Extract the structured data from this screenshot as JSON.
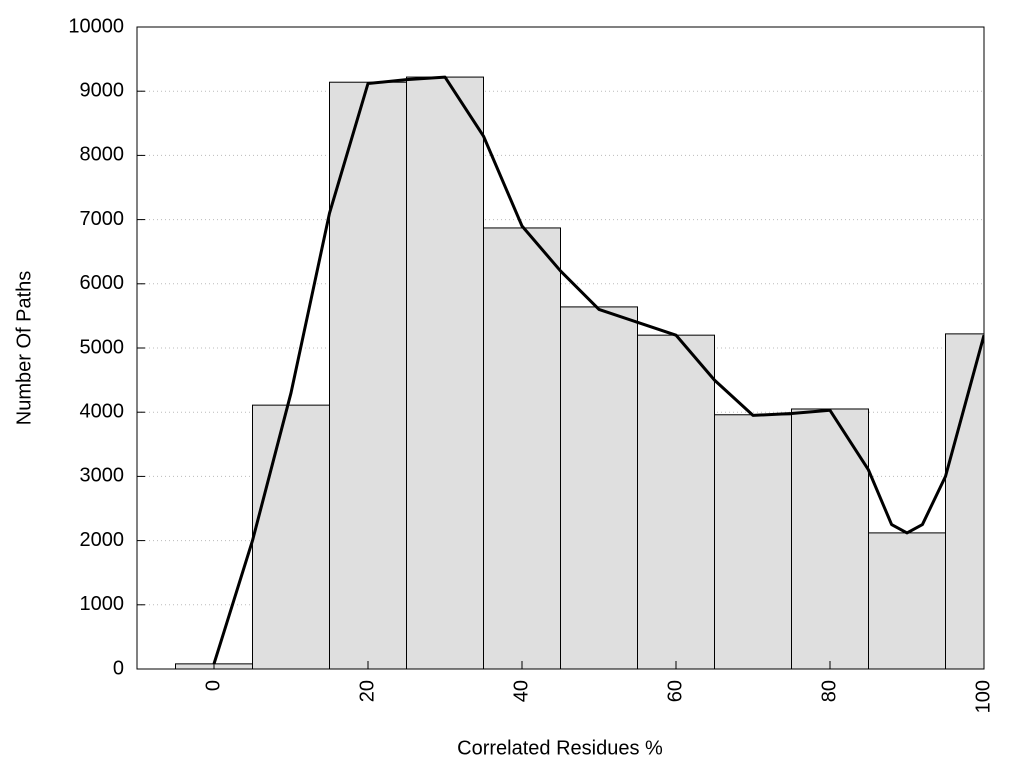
{
  "chart_data": {
    "type": "histogram",
    "xlabel": "Correlated Residues %",
    "ylabel": "Number Of Paths",
    "bins": [
      -5,
      5,
      15,
      25,
      35,
      45,
      55,
      65,
      75,
      85,
      95,
      105
    ],
    "values": [
      80,
      4110,
      9140,
      9220,
      6870,
      5640,
      5200,
      3960,
      4050,
      2120,
      5220
    ],
    "color": "#dfdfdf",
    "curve": {
      "color": "#000000",
      "x": [
        0,
        5,
        10,
        15,
        20,
        25,
        30,
        35,
        40,
        45,
        50,
        55,
        60,
        65,
        70,
        75,
        80,
        85,
        88,
        90,
        92,
        95,
        100
      ],
      "values": [
        80,
        2000,
        4300,
        7100,
        9120,
        9180,
        9220,
        8300,
        6900,
        6200,
        5600,
        5400,
        5200,
        4500,
        3950,
        3980,
        4030,
        3100,
        2250,
        2120,
        2250,
        3000,
        5200
      ]
    },
    "xlim": [
      -10,
      100
    ],
    "xticks": [
      0,
      20,
      40,
      60,
      80,
      100
    ],
    "ylim": [
      0,
      10000
    ],
    "yticks": [
      0,
      1000,
      2000,
      3000,
      4000,
      5000,
      6000,
      7000,
      8000,
      9000,
      10000
    ],
    "grid": true
  }
}
